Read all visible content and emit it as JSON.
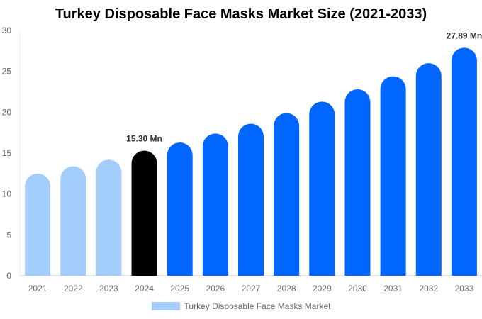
{
  "chart_data": {
    "type": "bar",
    "title": "Turkey Disposable Face Masks Market Size (2021-2033)",
    "categories": [
      "2021",
      "2022",
      "2023",
      "2024",
      "2025",
      "2026",
      "2027",
      "2028",
      "2029",
      "2030",
      "2031",
      "2032",
      "2033"
    ],
    "series": [
      {
        "name": "Turkey Disposable Face Masks Market",
        "values": [
          12.5,
          13.4,
          14.2,
          15.3,
          16.3,
          17.4,
          18.6,
          19.9,
          21.3,
          22.8,
          24.4,
          26.0,
          27.89
        ]
      }
    ],
    "data_labels": {
      "3": "15.30 Mn",
      "12": "27.89 Mn"
    },
    "ylim": [
      0,
      30
    ],
    "yticks": [
      0,
      5,
      10,
      15,
      20,
      25,
      30
    ],
    "xlabel": "",
    "ylabel": "",
    "grid": false,
    "legend_position": "bottom",
    "colors": {
      "historical": "#a3cefc",
      "current": "#000000",
      "forecast": "#0066ff"
    }
  }
}
